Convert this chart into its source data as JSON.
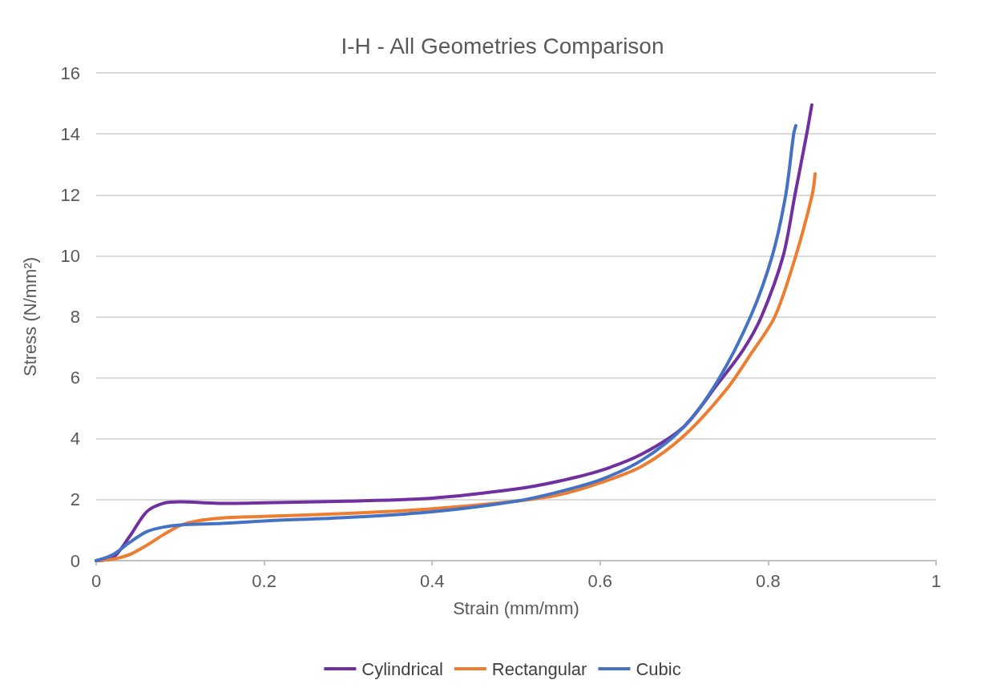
{
  "chart_data": {
    "type": "line",
    "title": "I-H - All Geometries Comparison",
    "xlabel": "Strain (mm/mm)",
    "ylabel": "Stress (N/mm²)",
    "xlim": [
      0,
      1
    ],
    "xticks": [
      0,
      0.2,
      0.4,
      0.6,
      0.8,
      1
    ],
    "ylim": [
      0,
      16
    ],
    "yticks": [
      0,
      2,
      4,
      6,
      8,
      10,
      12,
      14,
      16
    ],
    "grid": "y",
    "legend": "bottom",
    "marker": "none",
    "line_style": "solid",
    "series": [
      {
        "name": "Cylindrical",
        "color": "#7030a0",
        "x": [
          0,
          0.02,
          0.04,
          0.06,
          0.08,
          0.1,
          0.15,
          0.2,
          0.3,
          0.4,
          0.5,
          0.55,
          0.6,
          0.65,
          0.7,
          0.74,
          0.77,
          0.792,
          0.818,
          0.832,
          0.846,
          0.852
        ],
        "values": [
          0,
          0.1,
          0.8,
          1.6,
          1.88,
          1.93,
          1.88,
          1.9,
          1.95,
          2.05,
          2.35,
          2.6,
          2.95,
          3.5,
          4.4,
          5.8,
          6.9,
          8,
          10,
          12,
          14,
          14.95
        ]
      },
      {
        "name": "Rectangular",
        "color": "#ed7d31",
        "x": [
          0,
          0.02,
          0.04,
          0.06,
          0.08,
          0.1,
          0.12,
          0.15,
          0.2,
          0.3,
          0.4,
          0.5,
          0.55,
          0.6,
          0.65,
          0.7,
          0.75,
          0.78,
          0.808,
          0.833,
          0.8525,
          0.856
        ],
        "values": [
          0,
          0.05,
          0.2,
          0.5,
          0.85,
          1.15,
          1.3,
          1.4,
          1.45,
          1.55,
          1.7,
          1.95,
          2.15,
          2.55,
          3.1,
          4.1,
          5.6,
          6.8,
          8,
          10,
          12,
          12.69
        ]
      },
      {
        "name": "Cubic",
        "color": "#4472c4",
        "x": [
          0,
          0.02,
          0.04,
          0.06,
          0.08,
          0.1,
          0.15,
          0.2,
          0.3,
          0.4,
          0.5,
          0.55,
          0.6,
          0.65,
          0.7,
          0.74,
          0.779,
          0.805,
          0.821,
          0.8305,
          0.833
        ],
        "values": [
          0,
          0.2,
          0.6,
          0.95,
          1.1,
          1.17,
          1.22,
          1.3,
          1.42,
          1.6,
          1.95,
          2.25,
          2.65,
          3.3,
          4.4,
          5.9,
          8,
          10,
          12,
          14,
          14.27
        ]
      }
    ]
  }
}
